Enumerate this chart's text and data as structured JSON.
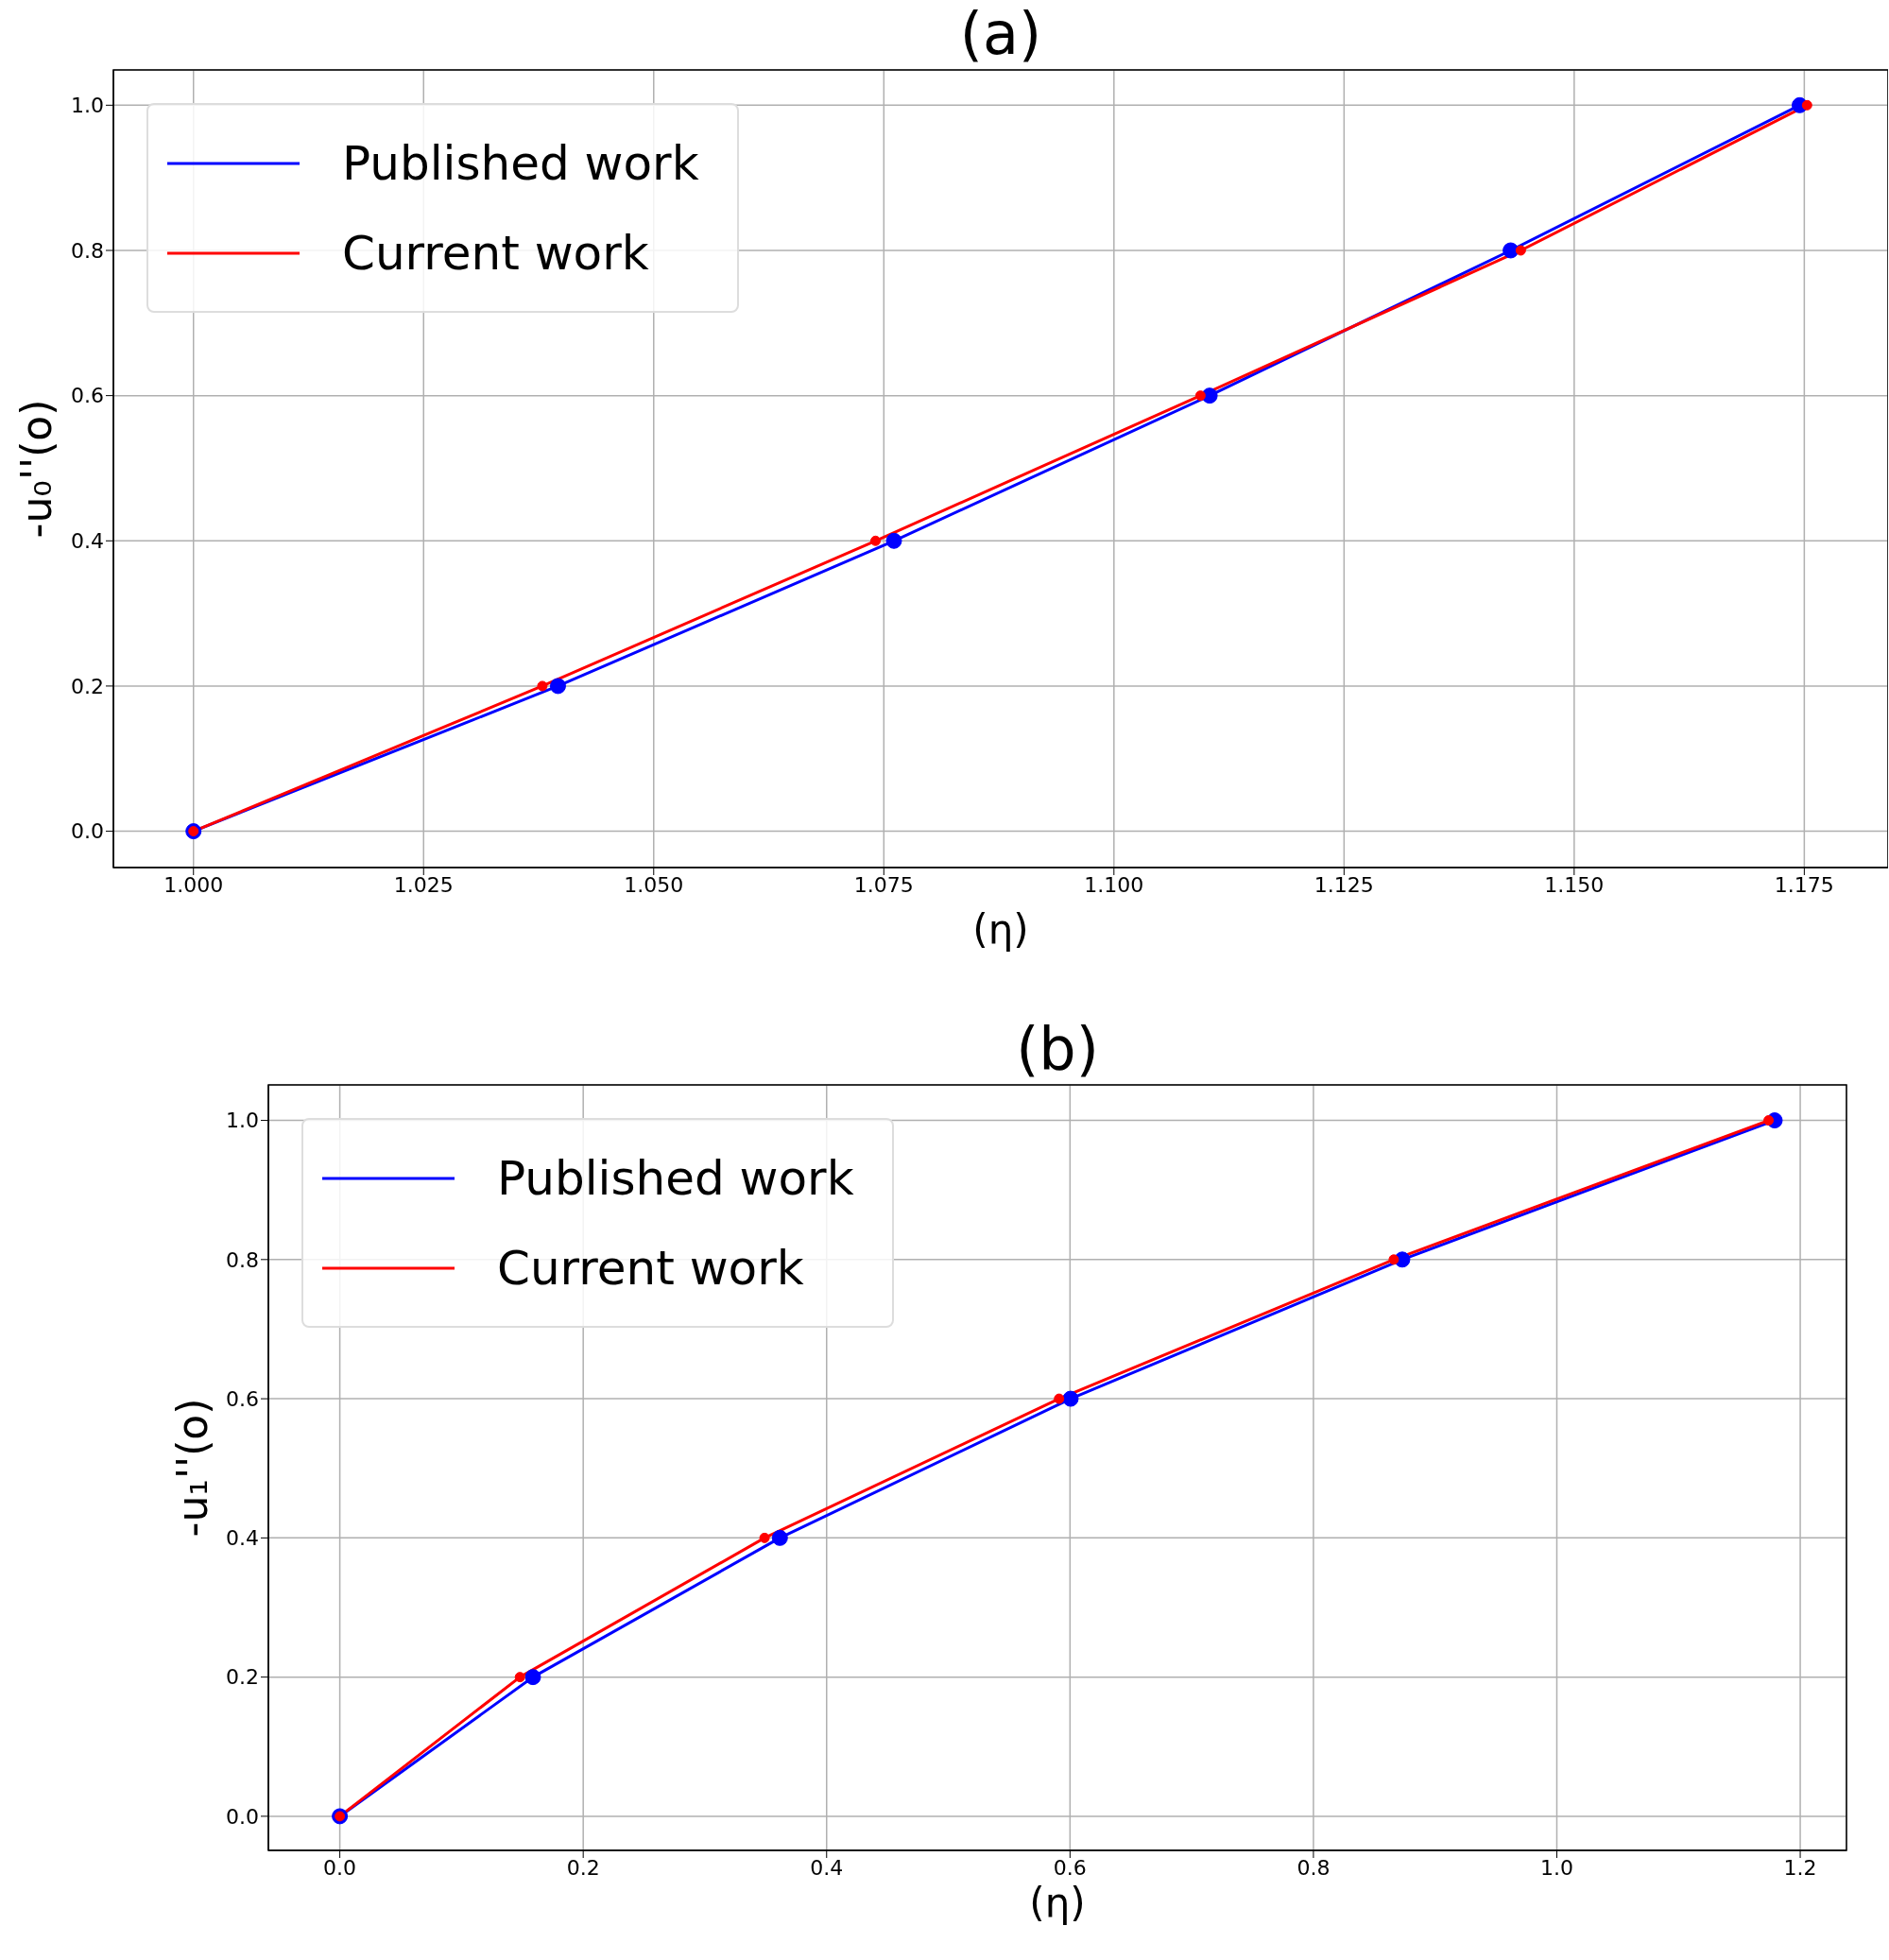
{
  "chart_data": [
    {
      "type": "line",
      "title": "(a)",
      "xlabel": "(η)",
      "ylabel": "-u₀''(o)",
      "xlim": [
        0.9913,
        1.1841
      ],
      "ylim": [
        -0.05,
        1.0486
      ],
      "xticks": [
        {
          "value": 1.0,
          "label": "1.000"
        },
        {
          "value": 1.025,
          "label": "1.025"
        },
        {
          "value": 1.05,
          "label": "1.050"
        },
        {
          "value": 1.075,
          "label": "1.075"
        },
        {
          "value": 1.1,
          "label": "1.100"
        },
        {
          "value": 1.125,
          "label": "1.125"
        },
        {
          "value": 1.15,
          "label": "1.150"
        },
        {
          "value": 1.175,
          "label": "1.175"
        }
      ],
      "yticks": [
        {
          "value": 0,
          "label": "0.0"
        },
        {
          "value": 0.2,
          "label": "0.2"
        },
        {
          "value": 0.4,
          "label": "0.4"
        },
        {
          "value": 0.6,
          "label": "0.6"
        },
        {
          "value": 0.8,
          "label": "0.8"
        },
        {
          "value": 1.0,
          "label": "1.0"
        }
      ],
      "grid": true,
      "legend": "top left",
      "marker": "circle",
      "line_style": "solid",
      "series": [
        {
          "name": "Published work",
          "color": "#0000ff",
          "x": [
            1.0,
            1.0396,
            1.0761,
            1.1104,
            1.1431,
            1.1745
          ],
          "values": [
            0,
            0.2,
            0.4,
            0.6,
            0.8,
            1.0
          ]
        },
        {
          "name": "Current work",
          "color": "#ff0000",
          "x": [
            1.0,
            1.0379,
            1.0741,
            1.1094,
            1.1442,
            1.1753
          ],
          "values": [
            0,
            0.2,
            0.4,
            0.6,
            0.8,
            1.0
          ]
        }
      ]
    },
    {
      "type": "line",
      "title": "(b)",
      "xlabel": "(η)",
      "ylabel": "-u₁''(o)",
      "xlim": [
        -0.0587,
        1.238
      ],
      "ylim": [
        -0.049,
        1.051
      ],
      "xticks": [
        {
          "value": 0,
          "label": "0.0"
        },
        {
          "value": 0.2,
          "label": "0.2"
        },
        {
          "value": 0.4,
          "label": "0.4"
        },
        {
          "value": 0.6,
          "label": "0.6"
        },
        {
          "value": 0.8,
          "label": "0.8"
        },
        {
          "value": 1.0,
          "label": "1.0"
        },
        {
          "value": 1.2,
          "label": "1.2"
        }
      ],
      "yticks": [
        {
          "value": 0,
          "label": "0.0"
        },
        {
          "value": 0.2,
          "label": "0.2"
        },
        {
          "value": 0.4,
          "label": "0.4"
        },
        {
          "value": 0.6,
          "label": "0.6"
        },
        {
          "value": 0.8,
          "label": "0.8"
        },
        {
          "value": 1.0,
          "label": "1.0"
        }
      ],
      "grid": true,
      "legend": "top left",
      "marker": "circle",
      "line_style": "solid",
      "series": [
        {
          "name": "Published work",
          "color": "#0000ff",
          "x": [
            0,
            0.1587,
            0.3616,
            0.6005,
            0.873,
            1.179
          ],
          "values": [
            0,
            0.2,
            0.4,
            0.6,
            0.8,
            1.0
          ]
        },
        {
          "name": "Current work",
          "color": "#ff0000",
          "x": [
            0,
            0.148,
            0.349,
            0.591,
            0.866,
            1.174
          ],
          "values": [
            0,
            0.2,
            0.4,
            0.6,
            0.8,
            1.0
          ]
        }
      ]
    }
  ]
}
